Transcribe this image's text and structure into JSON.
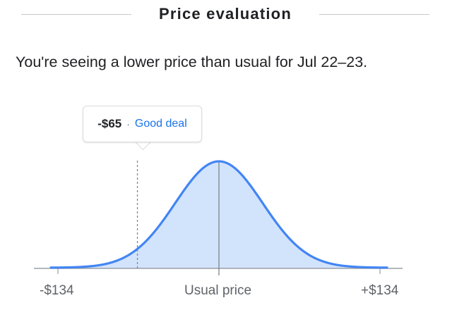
{
  "header": {
    "title": "Price evaluation"
  },
  "summary": {
    "text": "You're seeing a lower price than usual for Jul 22–23."
  },
  "tooltip": {
    "amount": "-$65",
    "separator": "·",
    "label": "Good deal"
  },
  "chart_data": {
    "type": "area",
    "title": "",
    "tick_labels": {
      "min": "-$134",
      "mid": "Usual price",
      "max": "+$134"
    },
    "range": [
      -134,
      134
    ],
    "usual_price_offset": 0,
    "current_price_offset": -65,
    "distribution": "bell curve",
    "grid": false
  },
  "colors": {
    "curve": "#4285f4",
    "fill": "#d2e3fc",
    "good_deal": "#1a73e8"
  }
}
